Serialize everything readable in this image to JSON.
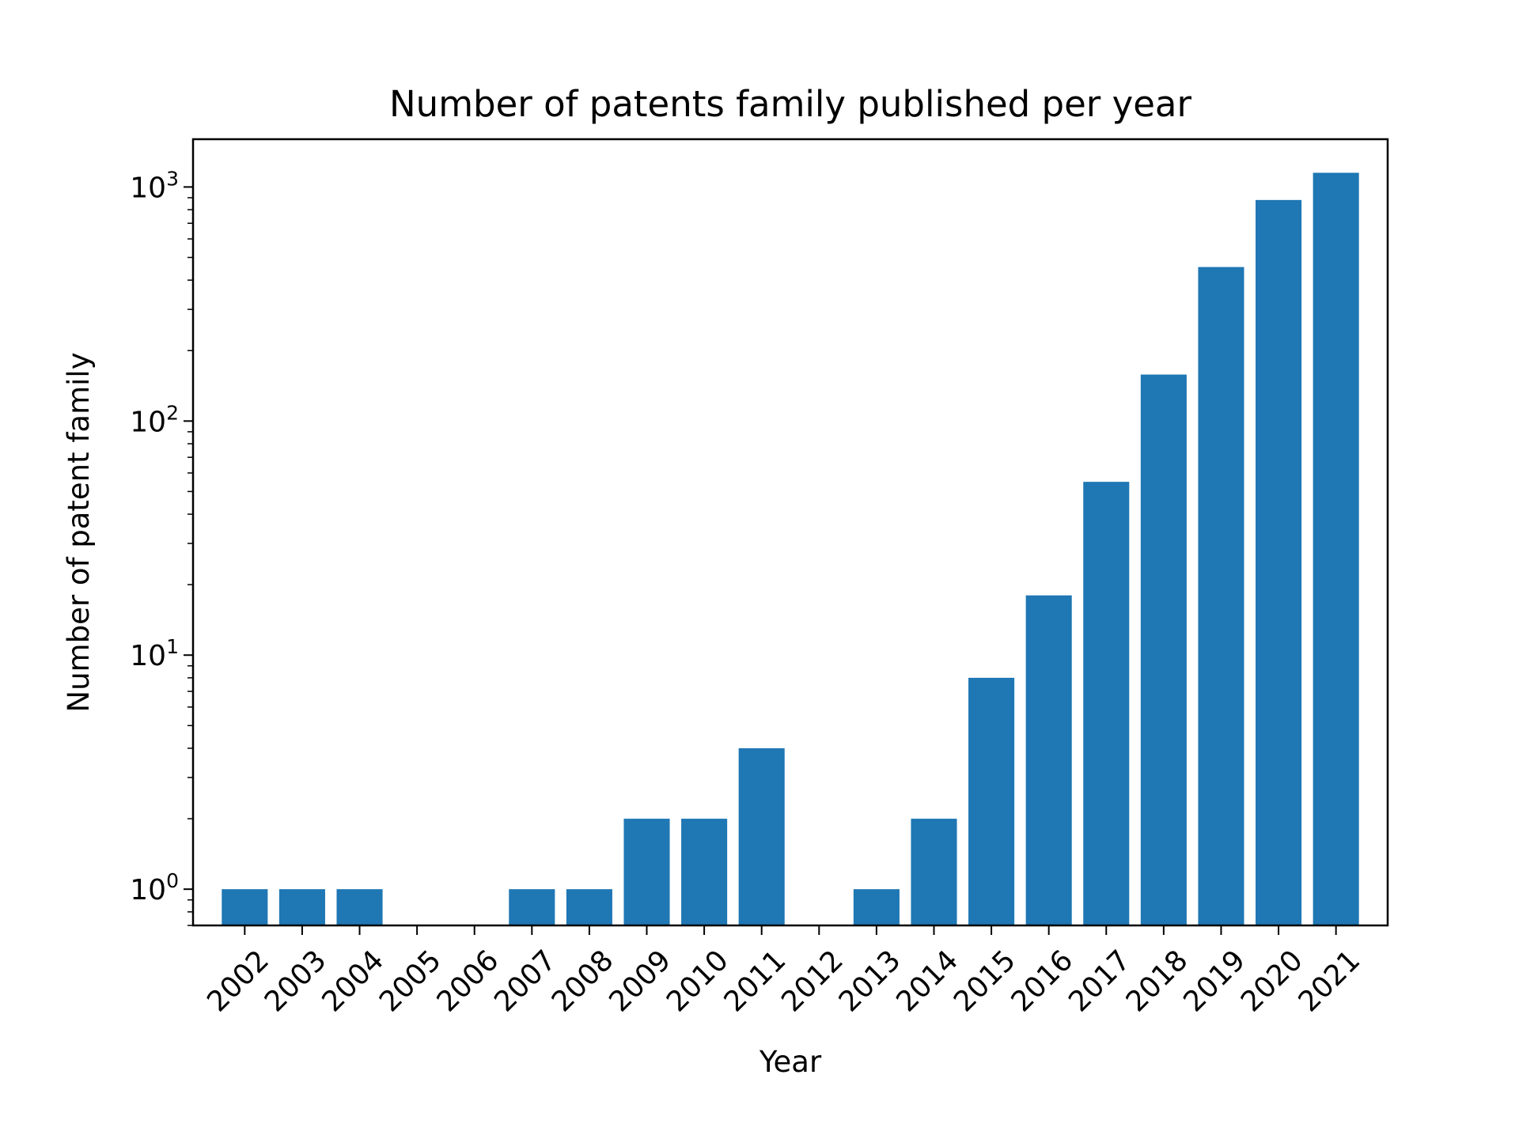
{
  "chart_data": {
    "type": "bar",
    "title": "Number of patents family published per year",
    "xlabel": "Year",
    "ylabel": "Number of patent family",
    "yscale": "log",
    "ylim": [
      0.7,
      1600
    ],
    "yticks": [
      {
        "value": 1,
        "base": "10",
        "exp": "0"
      },
      {
        "value": 10,
        "base": "10",
        "exp": "1"
      },
      {
        "value": 100,
        "base": "10",
        "exp": "2"
      },
      {
        "value": 1000,
        "base": "10",
        "exp": "3"
      }
    ],
    "grid": false,
    "legend": "none",
    "bar_color": "#1f77b4",
    "categories": [
      "2002",
      "2003",
      "2004",
      "2005",
      "2006",
      "2007",
      "2008",
      "2009",
      "2010",
      "2011",
      "2012",
      "2013",
      "2014",
      "2015",
      "2016",
      "2017",
      "2018",
      "2019",
      "2020",
      "2021"
    ],
    "values": [
      1,
      1,
      1,
      0,
      0,
      1,
      1,
      2,
      2,
      4,
      0,
      1,
      2,
      8,
      18,
      55,
      158,
      455,
      880,
      1150
    ]
  }
}
